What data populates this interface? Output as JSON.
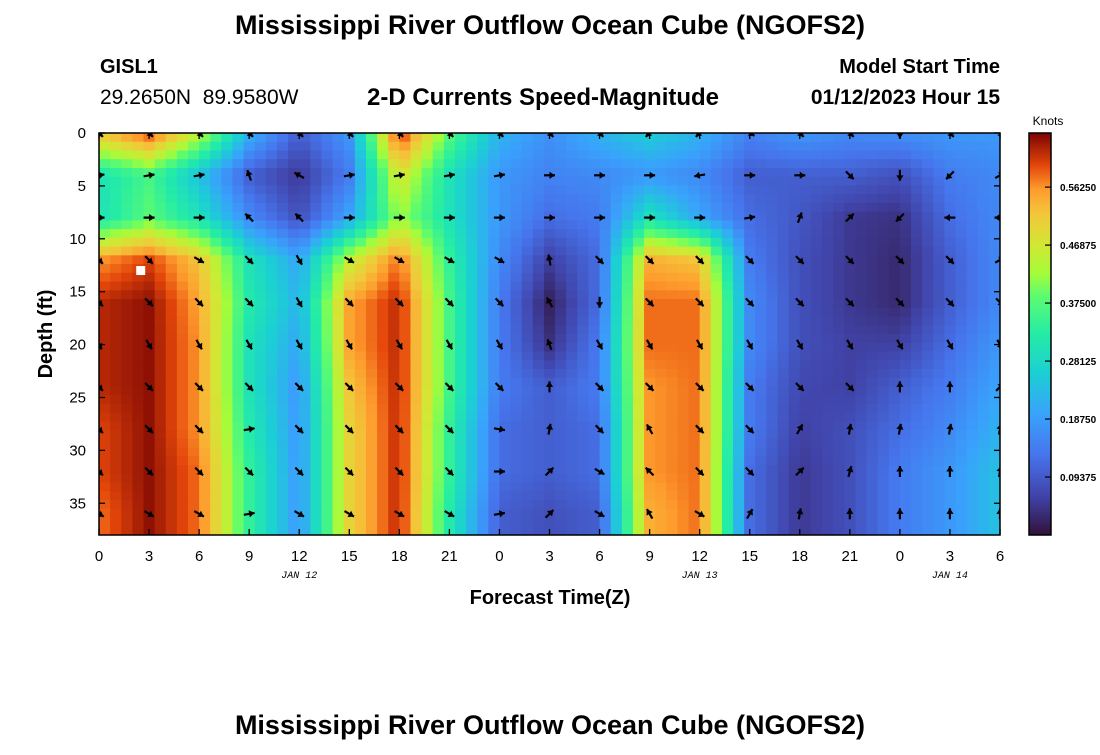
{
  "chart_data": {
    "type": "heatmap",
    "title": "Mississippi River Outflow Ocean Cube (NGOFS2)",
    "subtitle": "2-D Currents Speed-Magnitude",
    "station": {
      "id": "GISL1",
      "coords": "29.2650N  89.9580W"
    },
    "model_start": {
      "label": "Model Start Time",
      "value": "01/12/2023 Hour 15"
    },
    "xlabel": "Forecast Time(Z)",
    "ylabel": "Depth (ft)",
    "x_range_hours": [
      0,
      54
    ],
    "y_range_ft": [
      0,
      38
    ],
    "x_ticks": [
      0,
      3,
      6,
      9,
      12,
      15,
      18,
      21,
      24,
      27,
      30,
      33,
      36,
      39,
      42,
      45,
      48,
      51,
      54
    ],
    "x_tick_labels": [
      "0",
      "3",
      "6",
      "9",
      "12",
      "15",
      "18",
      "21",
      "0",
      "3",
      "6",
      "9",
      "12",
      "15",
      "18",
      "21",
      "0",
      "3",
      "6"
    ],
    "y_ticks": [
      0,
      5,
      10,
      15,
      20,
      25,
      30,
      35
    ],
    "y_tick_labels": [
      "0",
      "5",
      "10",
      "15",
      "20",
      "25",
      "30",
      "35"
    ],
    "date_labels": [
      {
        "hour": 12,
        "text": "JAN 12"
      },
      {
        "hour": 36,
        "text": "JAN 13"
      },
      {
        "hour": 51,
        "text": "JAN 14"
      }
    ],
    "colorbar": {
      "units": "Knots",
      "range": [
        0,
        0.65
      ],
      "tick_values": [
        0.09375,
        0.1875,
        0.28125,
        0.375,
        0.46875,
        0.5625
      ],
      "tick_labels": [
        "0.09375",
        "0.18750",
        "0.28125",
        "0.37500",
        "0.46875",
        "0.56250"
      ]
    },
    "speed_field": {
      "note": "estimated current speed (knots) by hour (columns) and depth (rows)",
      "hours": [
        0,
        3,
        6,
        9,
        12,
        15,
        18,
        21,
        24,
        27,
        30,
        33,
        36,
        39,
        42,
        45,
        48,
        51,
        54
      ],
      "depths_ft": [
        0,
        4,
        8,
        12,
        16,
        20,
        24,
        28,
        32,
        36
      ],
      "values": [
        [
          0.52,
          0.6,
          0.45,
          0.22,
          0.1,
          0.18,
          0.62,
          0.38,
          0.22,
          0.17,
          0.22,
          0.26,
          0.22,
          0.15,
          0.18,
          0.16,
          0.17,
          0.18,
          0.18
        ],
        [
          0.3,
          0.36,
          0.24,
          0.1,
          0.05,
          0.14,
          0.48,
          0.3,
          0.18,
          0.15,
          0.16,
          0.18,
          0.16,
          0.1,
          0.1,
          0.1,
          0.08,
          0.14,
          0.16
        ],
        [
          0.3,
          0.38,
          0.3,
          0.16,
          0.08,
          0.2,
          0.42,
          0.3,
          0.18,
          0.12,
          0.14,
          0.3,
          0.2,
          0.12,
          0.09,
          0.05,
          0.04,
          0.12,
          0.16
        ],
        [
          0.56,
          0.6,
          0.52,
          0.3,
          0.2,
          0.45,
          0.58,
          0.34,
          0.16,
          0.06,
          0.12,
          0.54,
          0.52,
          0.14,
          0.08,
          0.05,
          0.03,
          0.1,
          0.16
        ],
        [
          0.62,
          0.64,
          0.55,
          0.32,
          0.22,
          0.55,
          0.62,
          0.36,
          0.14,
          0.02,
          0.12,
          0.58,
          0.58,
          0.16,
          0.08,
          0.05,
          0.03,
          0.1,
          0.16
        ],
        [
          0.62,
          0.64,
          0.56,
          0.3,
          0.2,
          0.55,
          0.62,
          0.36,
          0.14,
          0.04,
          0.14,
          0.58,
          0.58,
          0.16,
          0.08,
          0.06,
          0.06,
          0.12,
          0.18
        ],
        [
          0.62,
          0.64,
          0.56,
          0.3,
          0.18,
          0.52,
          0.62,
          0.36,
          0.14,
          0.1,
          0.14,
          0.56,
          0.58,
          0.14,
          0.07,
          0.06,
          0.1,
          0.14,
          0.2
        ],
        [
          0.6,
          0.64,
          0.56,
          0.32,
          0.18,
          0.5,
          0.62,
          0.34,
          0.12,
          0.1,
          0.12,
          0.56,
          0.58,
          0.14,
          0.06,
          0.08,
          0.12,
          0.16,
          0.22
        ],
        [
          0.6,
          0.64,
          0.58,
          0.34,
          0.18,
          0.5,
          0.62,
          0.34,
          0.12,
          0.1,
          0.12,
          0.56,
          0.58,
          0.12,
          0.05,
          0.08,
          0.14,
          0.18,
          0.24
        ],
        [
          0.58,
          0.64,
          0.58,
          0.34,
          0.18,
          0.5,
          0.62,
          0.32,
          0.1,
          0.08,
          0.1,
          0.54,
          0.58,
          0.12,
          0.05,
          0.08,
          0.14,
          0.18,
          0.24
        ]
      ]
    },
    "current_vectors": {
      "note": "arrow direction in degrees (0 = right, 90 = up); hours x depth grid",
      "hours": [
        0,
        3,
        6,
        9,
        12,
        15,
        18,
        21,
        24,
        27,
        30,
        33,
        36,
        39,
        42,
        45,
        48,
        51,
        54
      ],
      "depths_ft": [
        0,
        4,
        8,
        12,
        16,
        20,
        24,
        28,
        32,
        36
      ],
      "angles_deg": [
        [
          -45,
          -45,
          -45,
          -45,
          -45,
          -45,
          -45,
          -45,
          -45,
          -45,
          -45,
          225,
          225,
          -30,
          -45,
          -45,
          -90,
          -45,
          -45
        ],
        [
          10,
          10,
          10,
          110,
          150,
          10,
          10,
          10,
          10,
          0,
          0,
          0,
          190,
          0,
          0,
          -45,
          -90,
          225,
          30
        ],
        [
          0,
          0,
          0,
          135,
          135,
          0,
          0,
          0,
          0,
          0,
          0,
          0,
          0,
          10,
          70,
          45,
          225,
          180,
          180
        ],
        [
          -45,
          -45,
          -30,
          -45,
          -60,
          -30,
          -30,
          -30,
          -30,
          100,
          -45,
          -45,
          -45,
          -45,
          -45,
          -45,
          -45,
          -45,
          30
        ],
        [
          -45,
          -45,
          -45,
          -45,
          -60,
          -45,
          -45,
          -45,
          -45,
          120,
          -90,
          -45,
          -45,
          -45,
          -45,
          -45,
          -45,
          -45,
          -45
        ],
        [
          -60,
          -60,
          -60,
          -60,
          -60,
          -60,
          -60,
          -60,
          -60,
          110,
          -60,
          -60,
          -60,
          -60,
          -60,
          -60,
          -60,
          -60,
          -60
        ],
        [
          -45,
          -45,
          -45,
          -45,
          -45,
          -45,
          -45,
          -45,
          -45,
          90,
          -45,
          -45,
          -45,
          -45,
          -45,
          -45,
          90,
          90,
          45
        ],
        [
          -45,
          -45,
          -45,
          10,
          -45,
          -45,
          -45,
          -45,
          -10,
          80,
          -45,
          120,
          -45,
          -45,
          60,
          80,
          80,
          80,
          80
        ],
        [
          -45,
          -45,
          -45,
          -45,
          -45,
          -45,
          -45,
          -45,
          0,
          45,
          -30,
          135,
          -45,
          -45,
          45,
          75,
          90,
          90,
          80
        ],
        [
          -30,
          -30,
          -30,
          10,
          -30,
          -30,
          -30,
          -30,
          10,
          45,
          -30,
          120,
          -30,
          60,
          80,
          90,
          90,
          90,
          90
        ]
      ]
    },
    "marker": {
      "hour": 2.5,
      "depth_ft": 13
    }
  },
  "bottom_title": "Mississippi River Outflow Ocean Cube (NGOFS2)"
}
